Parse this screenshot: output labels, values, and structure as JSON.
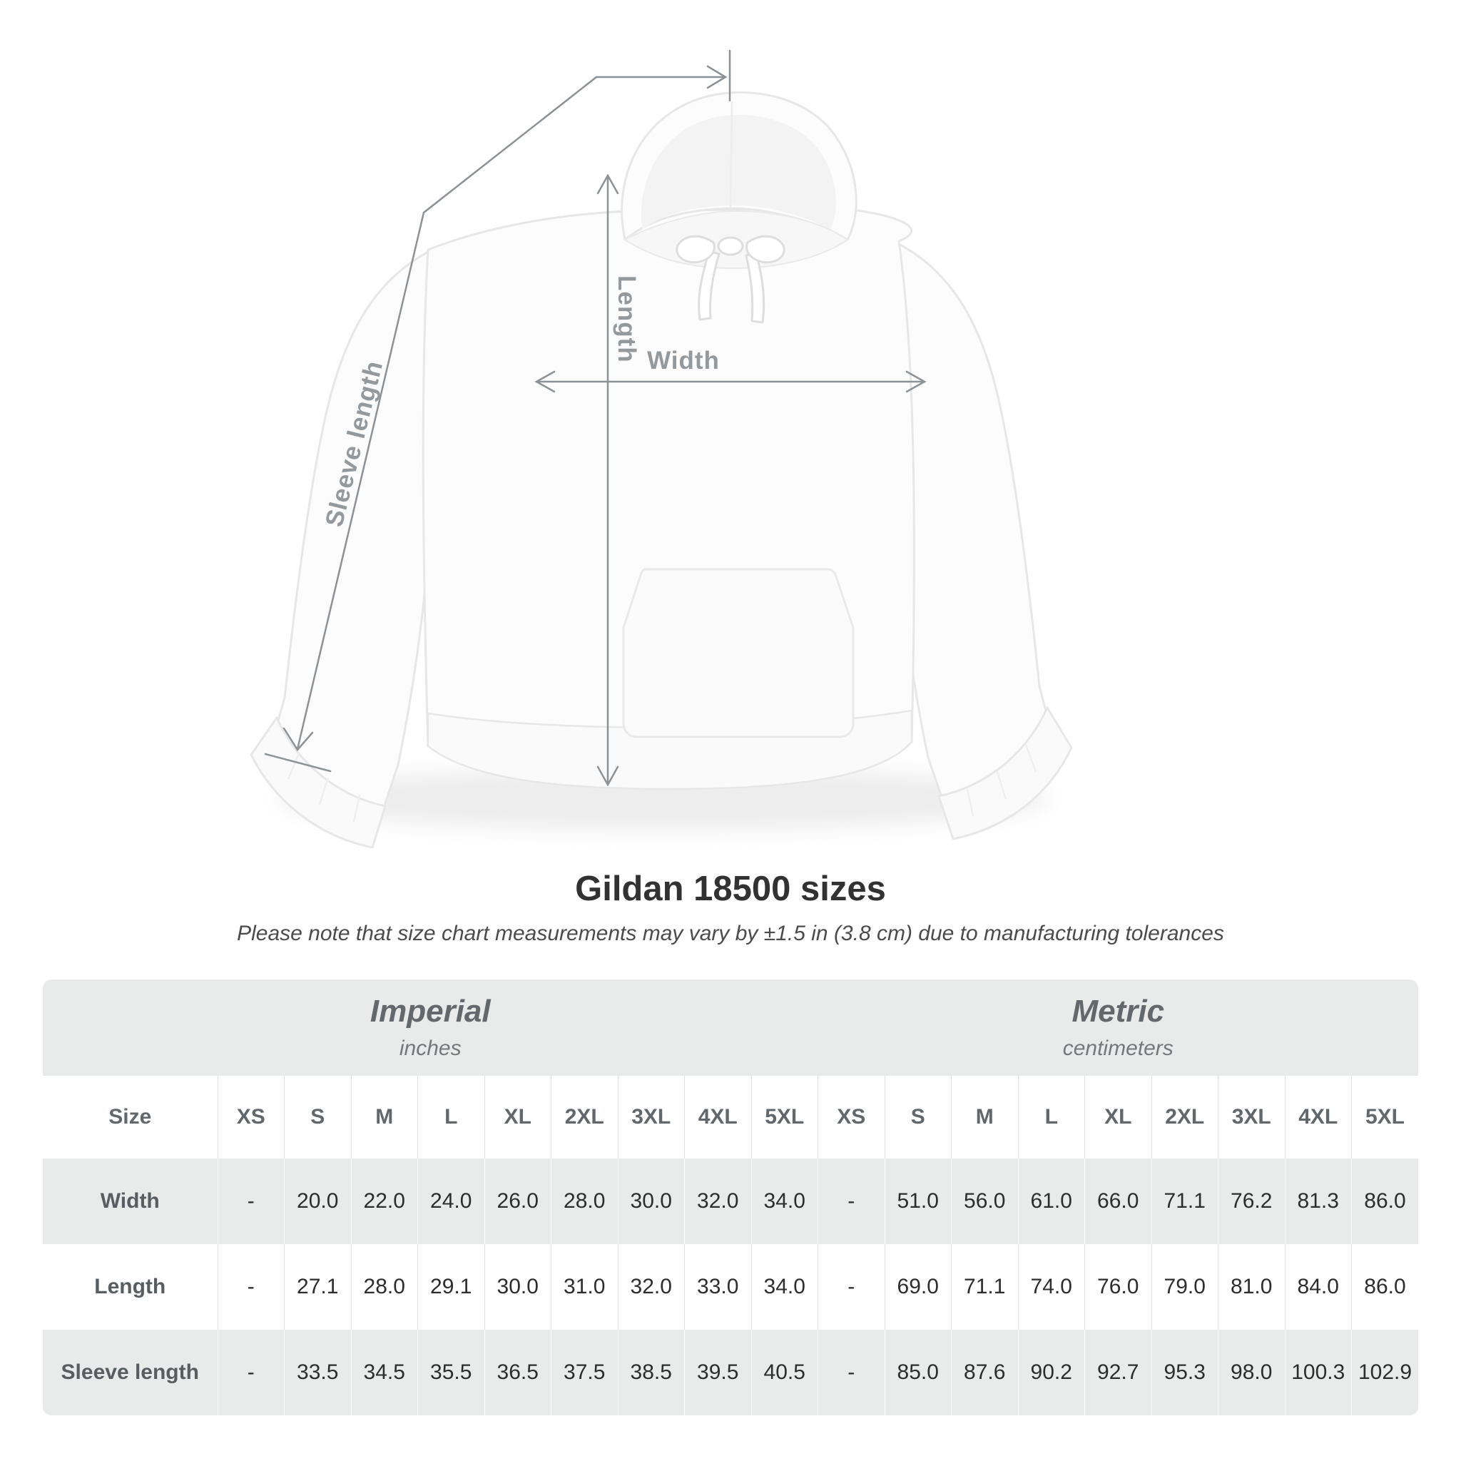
{
  "diagram": {
    "labels": {
      "sleeve_length": "Sleeve length",
      "length": "Length",
      "width": "Width"
    }
  },
  "title": "Gildan 18500 sizes",
  "subtitle": "Please note that size chart measurements may vary by ±1.5 in (3.8 cm) due to manufacturing tolerances",
  "table": {
    "unit_groups": [
      {
        "label": "Imperial",
        "sublabel": "inches"
      },
      {
        "label": "Metric",
        "sublabel": "centimeters"
      }
    ],
    "size_header": "Size",
    "sizes": [
      "XS",
      "S",
      "M",
      "L",
      "XL",
      "2XL",
      "3XL",
      "4XL",
      "5XL"
    ],
    "rows": [
      {
        "label": "Width",
        "imperial": [
          "-",
          "20.0",
          "22.0",
          "24.0",
          "26.0",
          "28.0",
          "30.0",
          "32.0",
          "34.0"
        ],
        "metric": [
          "-",
          "51.0",
          "56.0",
          "61.0",
          "66.0",
          "71.1",
          "76.2",
          "81.3",
          "86.0"
        ]
      },
      {
        "label": "Length",
        "imperial": [
          "-",
          "27.1",
          "28.0",
          "29.1",
          "30.0",
          "31.0",
          "32.0",
          "33.0",
          "34.0"
        ],
        "metric": [
          "-",
          "69.0",
          "71.1",
          "74.0",
          "76.0",
          "79.0",
          "81.0",
          "84.0",
          "86.0"
        ]
      },
      {
        "label": "Sleeve length",
        "imperial": [
          "-",
          "33.5",
          "34.5",
          "35.5",
          "36.5",
          "37.5",
          "38.5",
          "39.5",
          "40.5"
        ],
        "metric": [
          "-",
          "85.0",
          "87.6",
          "90.2",
          "92.7",
          "95.3",
          "98.0",
          "100.3",
          "102.9"
        ]
      }
    ]
  },
  "chart_data": {
    "type": "table",
    "title": "Gildan 18500 sizes",
    "columns": [
      "Size",
      "XS",
      "S",
      "M",
      "L",
      "XL",
      "2XL",
      "3XL",
      "4XL",
      "5XL"
    ],
    "units": {
      "imperial": "inches",
      "metric": "centimeters"
    },
    "rows_imperial": [
      [
        "Width",
        null,
        20.0,
        22.0,
        24.0,
        26.0,
        28.0,
        30.0,
        32.0,
        34.0
      ],
      [
        "Length",
        null,
        27.1,
        28.0,
        29.1,
        30.0,
        31.0,
        32.0,
        33.0,
        34.0
      ],
      [
        "Sleeve length",
        null,
        33.5,
        34.5,
        35.5,
        36.5,
        37.5,
        38.5,
        39.5,
        40.5
      ]
    ],
    "rows_metric": [
      [
        "Width",
        null,
        51.0,
        56.0,
        61.0,
        66.0,
        71.1,
        76.2,
        81.3,
        86.0
      ],
      [
        "Length",
        null,
        69.0,
        71.1,
        74.0,
        76.0,
        79.0,
        81.0,
        84.0,
        86.0
      ],
      [
        "Sleeve length",
        null,
        85.0,
        87.6,
        90.2,
        92.7,
        95.3,
        98.0,
        100.3,
        102.9
      ]
    ]
  },
  "colors": {
    "measure_line": "#8d9296",
    "measure_label": "#94999d",
    "table_band": "#e9eaea",
    "value_text": "#2d2d2d",
    "title_text": "#323232"
  }
}
